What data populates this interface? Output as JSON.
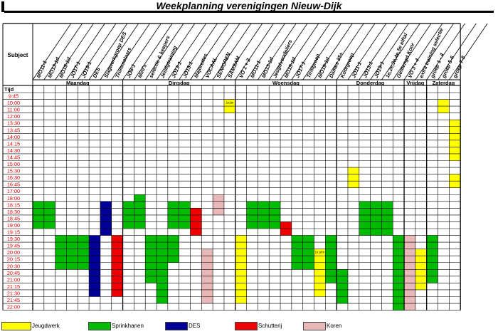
{
  "title": "Weekplanning verenigingen Nieuw-Dijk",
  "subject_label": "Subject",
  "tijd_label": "Tijd",
  "colors": {
    "jeugdwerk": "#ffff00",
    "sprinkhanen": "#00bb00",
    "des": "#000099",
    "schutterij": "#ee0000",
    "koren": "#e8b8b8"
  },
  "columns": [
    "MO11-1",
    "MO13-1d",
    "MO15-1d",
    "JO17-1",
    "JO19-1",
    "DES",
    "Slagwerkgroep DES",
    "Trommelaars",
    "JO8-1",
    "Mini's",
    "selectie & keepers",
    "Jeudgtraining",
    "JO13-1",
    "JO15-1",
    "Majorettes",
    "VOCAAL",
    "SENIOREN",
    "SAMSAM",
    "VO 1 + 2",
    "MO11-1",
    "MO13-1d",
    "Jeugdvendeliers",
    "MO15-1d",
    "JO17-1",
    "Tirnigroep",
    "MO19-1d",
    "Dames 35+",
    "Koorgroep",
    "JO11-1",
    "JO13-1",
    "JO19-1",
    "1e,2e,3e,4e,5e elftal",
    "Gemengd Koor",
    "VO 3 + 4",
    "extra training selectie",
    "groep 1 - 4",
    "groep 5-6",
    "groep 7-8"
  ],
  "days": [
    {
      "label": "Maandag",
      "start": 0,
      "end": 8
    },
    {
      "label": "Dinsdag",
      "start": 8,
      "end": 18
    },
    {
      "label": "Woensdag",
      "start": 18,
      "end": 27
    },
    {
      "label": "Donderdag",
      "start": 27,
      "end": 33
    },
    {
      "label": "Vrijdag",
      "start": 33,
      "end": 35
    },
    {
      "label": "Zaterdag",
      "start": 35,
      "end": 38
    }
  ],
  "times": [
    "9:45",
    "10:00",
    "11:00",
    "12:00",
    "13:30",
    "13:45",
    "14:00",
    "14:15",
    "14:30",
    "14:45",
    "15:00",
    "15:30",
    "16:30",
    "16:45",
    "17:00",
    "18:00",
    "18:15",
    "18:30",
    "18:45",
    "19:00",
    "19:15",
    "19:30",
    "19:45",
    "20:00",
    "20:15",
    "20:30",
    "20:45",
    "21:00",
    "21:15",
    "21:30",
    "21:45",
    "22:00"
  ],
  "cells": [
    {
      "col": 0,
      "start": 16,
      "end": 20,
      "color": "sprinkhanen"
    },
    {
      "col": 1,
      "start": 16,
      "end": 20,
      "color": "sprinkhanen"
    },
    {
      "col": 2,
      "start": 21,
      "end": 26,
      "color": "sprinkhanen"
    },
    {
      "col": 3,
      "start": 21,
      "end": 26,
      "color": "sprinkhanen"
    },
    {
      "col": 4,
      "start": 21,
      "end": 26,
      "color": "sprinkhanen"
    },
    {
      "col": 5,
      "start": 21,
      "end": 30,
      "color": "des"
    },
    {
      "col": 6,
      "start": 16,
      "end": 21,
      "color": "des"
    },
    {
      "col": 7,
      "start": 21,
      "end": 30,
      "color": "schutterij"
    },
    {
      "col": 8,
      "start": 16,
      "end": 20,
      "color": "sprinkhanen"
    },
    {
      "col": 9,
      "start": 15,
      "end": 20,
      "color": "sprinkhanen"
    },
    {
      "col": 10,
      "start": 21,
      "end": 28,
      "color": "sprinkhanen"
    },
    {
      "col": 11,
      "start": 21,
      "end": 31,
      "color": "sprinkhanen"
    },
    {
      "col": 12,
      "start": 21,
      "end": 25,
      "color": "sprinkhanen"
    },
    {
      "col": 12,
      "start": 16,
      "end": 20,
      "color": "sprinkhanen"
    },
    {
      "col": 13,
      "start": 16,
      "end": 20,
      "color": "sprinkhanen"
    },
    {
      "col": 14,
      "start": 17,
      "end": 21,
      "color": "schutterij"
    },
    {
      "col": 15,
      "start": 23,
      "end": 31,
      "color": "koren"
    },
    {
      "col": 16,
      "start": 15,
      "end": 18,
      "color": "koren"
    },
    {
      "col": 17,
      "start": 1,
      "end": 3,
      "color": "jeugdwerk",
      "label": "1x2w"
    },
    {
      "col": 18,
      "start": 21,
      "end": 31,
      "color": "jeugdwerk"
    },
    {
      "col": 19,
      "start": 16,
      "end": 20,
      "color": "sprinkhanen"
    },
    {
      "col": 20,
      "start": 16,
      "end": 20,
      "color": "sprinkhanen"
    },
    {
      "col": 21,
      "start": 16,
      "end": 20,
      "color": "sprinkhanen"
    },
    {
      "col": 22,
      "start": 19,
      "end": 21,
      "color": "schutterij"
    },
    {
      "col": 23,
      "start": 21,
      "end": 26,
      "color": "sprinkhanen"
    },
    {
      "col": 24,
      "start": 21,
      "end": 26,
      "color": "sprinkhanen"
    },
    {
      "col": 25,
      "start": 23,
      "end": 30,
      "color": "jeugdwerk",
      "label": "1x p/m"
    },
    {
      "col": 26,
      "start": 21,
      "end": 28,
      "color": "sprinkhanen"
    },
    {
      "col": 27,
      "start": 26,
      "end": 31,
      "color": "sprinkhanen"
    },
    {
      "col": 28,
      "start": 11,
      "end": 14,
      "color": "jeugdwerk"
    },
    {
      "col": 29,
      "start": 16,
      "end": 21,
      "color": "sprinkhanen"
    },
    {
      "col": 30,
      "start": 16,
      "end": 21,
      "color": "sprinkhanen"
    },
    {
      "col": 31,
      "start": 16,
      "end": 21,
      "color": "sprinkhanen"
    },
    {
      "col": 32,
      "start": 21,
      "end": 32,
      "color": "sprinkhanen"
    },
    {
      "col": 33,
      "start": 21,
      "end": 32,
      "color": "koren"
    },
    {
      "col": 34,
      "start": 23,
      "end": 29,
      "color": "jeugdwerk"
    },
    {
      "col": 35,
      "start": 21,
      "end": 28,
      "color": "sprinkhanen"
    },
    {
      "col": 36,
      "start": 1,
      "end": 3,
      "color": "jeugdwerk"
    },
    {
      "col": 37,
      "start": 4,
      "end": 10,
      "color": "jeugdwerk"
    },
    {
      "col": 37,
      "start": 12,
      "end": 14,
      "color": "jeugdwerk"
    }
  ],
  "legend": [
    {
      "key": "jeugdwerk",
      "label": "Jeugdwerk"
    },
    {
      "key": "sprinkhanen",
      "label": "Sprinkhanen"
    },
    {
      "key": "des",
      "label": "DES"
    },
    {
      "key": "schutterij",
      "label": "Schutterij"
    },
    {
      "key": "koren",
      "label": "Koren"
    }
  ]
}
